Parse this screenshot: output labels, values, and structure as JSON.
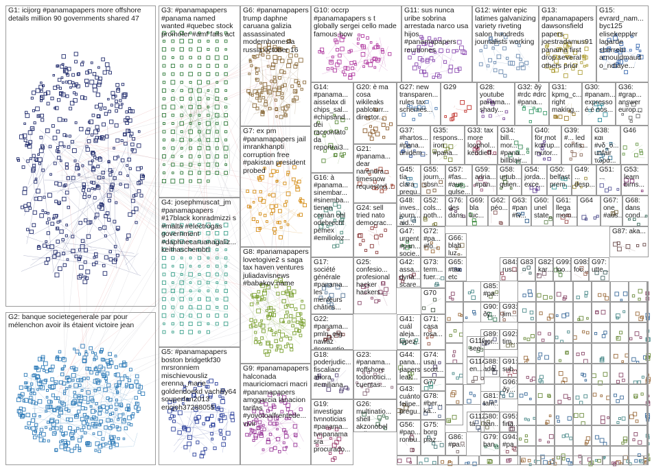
{
  "graph_title": "",
  "groups": [
    {
      "id": "G1",
      "label": "G1: icijorg #panamapapers more offshore details million 90 governments shared 47",
      "color": "#1f2a6b"
    },
    {
      "id": "G2",
      "label": "G2: banque societegenerale par pour mélenchon avoir ils étaient victoire jean",
      "color": "#2e7bb8"
    },
    {
      "id": "G3",
      "label": "G3: #panamapapers #panama named wanted #quebec stock promoter #amf fails act",
      "color": "#2f7a3a"
    },
    {
      "id": "G4",
      "label": "G4: josephmuscat_jm #panamapapers #17black konradmizzi s #malta #electrogas government #daphnecaruanagaliz... keithaschembri",
      "color": "#3aa08a"
    },
    {
      "id": "G5",
      "label": "G5: #panamapapers boston bridgetkf30 mrsronniem mischievousliz erenna_marie goldendoekd vachilly64 souperfan2013 ericjoh37288055",
      "color": "#2a3f9a"
    },
    {
      "id": "G6",
      "label": "G6: #panamapapers trump daphne caruana galizia assassinated modernhomesla russia october 16",
      "color": "#8a6a3a"
    },
    {
      "id": "G7",
      "label": "G7: ex pm #panamapapers jail imrankhanpti corruption free #pakistan president probed",
      "color": "#d48a10"
    },
    {
      "id": "G8",
      "label": "G8: #panamapapers lovetogive2 s saga tax haven ventures juliadavisnews #babakov name",
      "color": "#7aa030"
    },
    {
      "id": "G9",
      "label": "G9: #panamapapers halconada mauriciomacri macri #panamapapers amggarcia lanacion tarifas #yovotoalfrentede... vivir",
      "color": "#9a3a9a"
    },
    {
      "id": "G10",
      "label": "G10: occrp #panamapapers s t globally sergei cello made famous how",
      "color": "#b03aa0"
    },
    {
      "id": "G11",
      "label": "G11: sus nunca uribe sobrina arrestada narco usa hijos #panamapapers reuniones",
      "color": "#8a4ab0"
    },
    {
      "id": "G12",
      "label": "G12: winter epic latimes galvanizing variety riveting salon hundreds journalists working",
      "color": "#6a8ab0"
    },
    {
      "id": "G13",
      "label": "G13: #panamapapers dawsonsfield papers joestradamus91 panama first drop several others prior",
      "color": "#b0a03a"
    },
    {
      "id": "G15",
      "label": "G15: evrard_nam... byc125 elisekeppler lagarde sberrebi arnouldmaud o_ndiaye...",
      "color": "#3a6ab0"
    },
    {
      "id": "G14",
      "label": "G14: #panama... aisselax di chips_sal... #chipsand... dei raccontato da reportrai3...",
      "color": "#5a8a3a"
    },
    {
      "id": "G20",
      "label": "G20: è ma cosa wikileaks pabloturr... director...",
      "color": "#8a5a2a"
    },
    {
      "id": "G27",
      "label": "G27: new transparen... rules tax schemes...",
      "color": "#4a7ab0"
    },
    {
      "id": "G29",
      "label": "G29",
      "color": "#c0302a"
    },
    {
      "id": "G28",
      "label": "G28: youtube panama... shady...",
      "color": "#7a4a9a"
    },
    {
      "id": "G32",
      "label": "G32: ðÿ #rdc #drc #pana...",
      "color": "#3a9a6a"
    },
    {
      "id": "G31",
      "label": "G31: kpmg_c... right making...",
      "color": "#9a7a2a"
    },
    {
      "id": "G30",
      "label": "G30: #panam... expresso é é nos...",
      "color": "#2a8a9a"
    },
    {
      "id": "G36",
      "label": "G36: #grap... answer europ...",
      "color": "#6a6a6a"
    },
    {
      "id": "G21",
      "label": "G21: #panama... dear narendra... timesnow requested...",
      "color": "#a04a3a"
    },
    {
      "id": "G37",
      "label": "G37: #hartos... #pana... unidem...",
      "color": "#3a5a9a"
    },
    {
      "id": "G35",
      "label": "G35: respons... iron #pana...",
      "color": "#7a8a3a"
    },
    {
      "id": "G33",
      "label": "G33: tax more loophol... keddieff...",
      "color": "#9a3a5a"
    },
    {
      "id": "G34",
      "label": "G34: bill... mor... #pana... billblair...",
      "color": "#3a8a5a"
    },
    {
      "id": "G40",
      "label": "G40: för mot korrup... mutor...",
      "color": "#5a3a8a"
    },
    {
      "id": "G39",
      "label": "G39: #... led confis...",
      "color": "#8a6a5a"
    },
    {
      "id": "G38",
      "label": "G38: και #νδ_ο... unfair τώρα...",
      "color": "#2a6a8a"
    },
    {
      "id": "G46",
      "label": "G46",
      "color": "#6a9a4a"
    },
    {
      "id": "G16",
      "label": "G16: à #panama... sinembar... #sinemba... tienen comàn ohl odebrecht pemex #emilioloz...",
      "color": "#4a8a7a"
    },
    {
      "id": "G24",
      "label": "G24: sell tried nato democrac...",
      "color": "#8a3a3a"
    },
    {
      "id": "G45",
      "label": "G45: tía clara pregu...",
      "color": "#3a7a9a"
    },
    {
      "id": "G55",
      "label": "G55: journ... sbsn...",
      "color": "#7a5a3a"
    },
    {
      "id": "G57",
      "label": "G57: #fas... #aus... gulse...",
      "color": "#5a9a6a"
    },
    {
      "id": "G59",
      "label": "G59: adria... #pan...",
      "color": "#9a5a7a"
    },
    {
      "id": "G58",
      "label": "G58: urtub... quien...",
      "color": "#4a6a3a"
    },
    {
      "id": "G54",
      "label": "G54: jorda... exce...",
      "color": "#6a4a9a"
    },
    {
      "id": "G50",
      "label": "G50: belfast prem...",
      "color": "#3a9a9a"
    },
    {
      "id": "G49",
      "label": "G49: ... desp...",
      "color": "#9a8a3a"
    },
    {
      "id": "G51",
      "label": "G51: ...",
      "color": "#5a5a9a"
    },
    {
      "id": "G53",
      "label": "G53: learn birns...",
      "color": "#8a3a7a"
    },
    {
      "id": "G48",
      "label": "G48: inves... journ... aid...",
      "color": "#3a5a6a"
    },
    {
      "id": "G52",
      "label": "G52: cols... noth...",
      "color": "#7a7a3a"
    },
    {
      "id": "G76",
      "label": "G76: des dans...",
      "color": "#5a3a5a"
    },
    {
      "id": "G69",
      "label": "G69: bla luc...",
      "color": "#3a8a3a"
    },
    {
      "id": "G62",
      "label": "G62: péo...",
      "color": "#8a5a5a"
    },
    {
      "id": "G63",
      "label": "G63: #pan #tv...",
      "color": "#2a5a8a"
    },
    {
      "id": "G60",
      "label": "G60: unel state...",
      "color": "#6a8a5a"
    },
    {
      "id": "G61",
      "label": "G61: llega mom...",
      "color": "#9a4a4a"
    },
    {
      "id": "G64",
      "label": "G64",
      "color": "#4a4a8a"
    },
    {
      "id": "G67",
      "label": "G67: one #aus...",
      "color": "#7a6a4a"
    },
    {
      "id": "G68",
      "label": "G68: dans cond...",
      "color": "#3a6a5a"
    },
    {
      "id": "G17",
      "label": "G17: société générale #panama... les menteurs châties...",
      "color": "#5a7a9a"
    },
    {
      "id": "G25",
      "label": "G25: confesio... profesional hacker hackers...",
      "color": "#8a4a6a"
    },
    {
      "id": "G47",
      "label": "G47: urgent #pan... socie...",
      "color": "#4a9a5a"
    },
    {
      "id": "G72",
      "label": "G72: #pa... #fo...",
      "color": "#9a6a3a"
    },
    {
      "id": "G65",
      "label": "G65: #tax etc",
      "color": "#3a4a7a"
    },
    {
      "id": "G42",
      "label": "G42: assa... dyna... scare...",
      "color": "#7a3a4a"
    },
    {
      "id": "G73",
      "label": "G73: term... fuer...",
      "color": "#5a8a8a"
    },
    {
      "id": "G66",
      "label": "G66: blab luz...",
      "color": "#8a7a5a"
    },
    {
      "id": "G70",
      "label": "G70",
      "color": "#4a5a4a"
    },
    {
      "id": "G22",
      "label": "G22: #panama... pmln_org nawaz #corruptio...",
      "color": "#6a3a3a"
    },
    {
      "id": "G41",
      "label": "G41: cuál aleja... lopez...",
      "color": "#3a7a6a"
    },
    {
      "id": "G71",
      "label": "G71: casa rosa...",
      "color": "#9a5a4a"
    },
    {
      "id": "G18",
      "label": "G18: poderjudic... fiscaliacr ahora #emiliana...",
      "color": "#5a4a7a"
    },
    {
      "id": "G44",
      "label": "G44: pana... papers leak...",
      "color": "#7a9a5a"
    },
    {
      "id": "G74",
      "label": "G74: usai scott...",
      "color": "#4a3a6a"
    },
    {
      "id": "G23",
      "label": "G23: #panama... #offshore todonotici... cuentas...",
      "color": "#8a6a7a"
    },
    {
      "id": "G77",
      "label": "G77",
      "color": "#3a8a7a"
    },
    {
      "id": "G43",
      "label": "G43: cuánto felipe... pregu...",
      "color": "#6a5a3a"
    },
    {
      "id": "G78",
      "label": "G78: #ber... kä...",
      "color": "#5a6a8a"
    },
    {
      "id": "G19",
      "label": "G19: investigar tvnnoticias #panama... tvnpanama sra procurado...",
      "color": "#9a3a6a"
    },
    {
      "id": "G26",
      "label": "G26: multinatio... shell akzonobel unilever...",
      "color": "#3a6a4a"
    },
    {
      "id": "G56",
      "label": "G56: #pan... ronbu...",
      "color": "#7a4a5a"
    },
    {
      "id": "G75",
      "label": "G75: borg piaz...",
      "color": "#4a7a7a"
    },
    {
      "id": "G85",
      "label": "G85: #pa...",
      "color": "#6a7a4a"
    },
    {
      "id": "G84",
      "label": "G84: rus...",
      "color": "#8a3a4a"
    },
    {
      "id": "G83",
      "label": "G83",
      "color": "#3a5a5a"
    },
    {
      "id": "G82",
      "label": "G82: kar...",
      "color": "#7a5a6a"
    },
    {
      "id": "G99",
      "label": "G99: loo...",
      "color": "#5a8a4a"
    },
    {
      "id": "G98",
      "label": "G98: foc...",
      "color": "#9a6a5a"
    },
    {
      "id": "G97",
      "label": "G97: utte...",
      "color": "#4a6a6a"
    },
    {
      "id": "G87",
      "label": "G87: aka...",
      "color": "#6a4a4a"
    },
    {
      "id": "G90",
      "label": "G90: ðÿ...",
      "color": "#3a7a5a"
    },
    {
      "id": "G93",
      "label": "G93: jim...",
      "color": "#8a5a4a"
    },
    {
      "id": "G89",
      "label": "G89: gor...",
      "color": "#5a5a7a"
    },
    {
      "id": "G92",
      "label": "G92: tim...",
      "color": "#7a7a5a"
    },
    {
      "id": "G88",
      "label": "G88: ado...",
      "color": "#4a4a5a"
    },
    {
      "id": "G91",
      "label": "G91: sub...",
      "color": "#9a4a5a"
    },
    {
      "id": "G96",
      "label": "G96: ðÿ...",
      "color": "#3a6a7a"
    },
    {
      "id": "G80",
      "label": "G80: ban...",
      "color": "#6a6a4a"
    },
    {
      "id": "G95",
      "label": "G95: fina...",
      "color": "#5a3a4a"
    },
    {
      "id": "G79",
      "label": "G79: ban...",
      "color": "#4a8a6a"
    },
    {
      "id": "G94",
      "label": "G94: #pa...",
      "color": "#8a4a5a"
    },
    {
      "id": "G81",
      "label": "G81: tam...",
      "color": "#3a4a6a"
    },
    {
      "id": "G86",
      "label": "G86: #pa...",
      "color": "#7a6a6a"
    },
    {
      "id": "G110",
      "label": "G110: see",
      "color": "#5a7a5a"
    },
    {
      "id": "G114",
      "label": "G114: en...",
      "color": "#6a5a5a"
    },
    {
      "id": "G112",
      "label": "G112: tá...",
      "color": "#4a5a7a"
    }
  ],
  "small_groups": [
    {
      "id": "G11x",
      "label": "G1... jov..."
    },
    {
      "id": "G11y",
      "label": "G1... mis..."
    }
  ]
}
